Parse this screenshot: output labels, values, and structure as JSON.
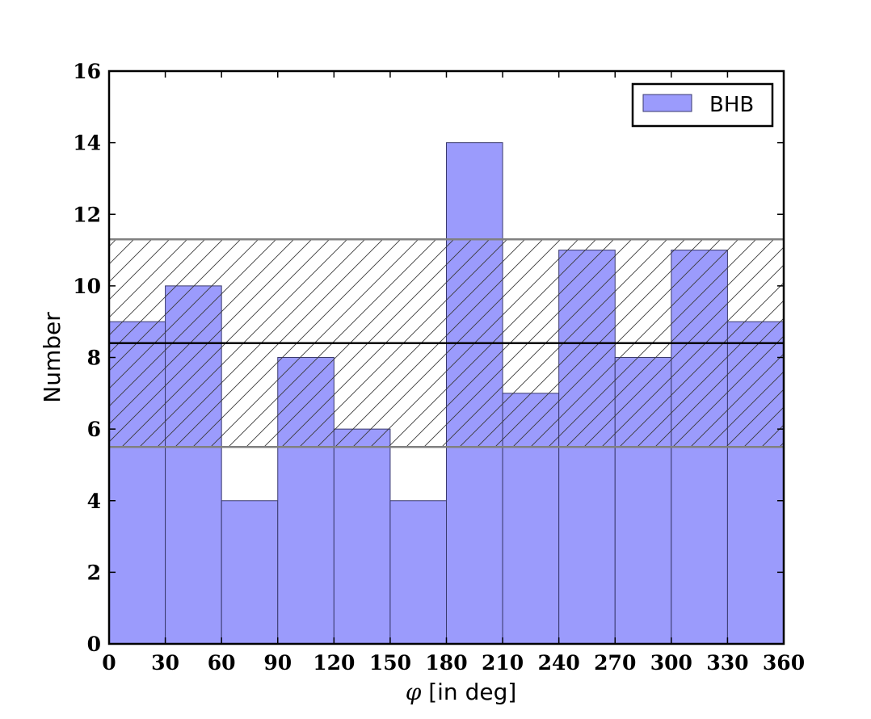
{
  "chart_data": {
    "type": "bar",
    "title": "",
    "xlabel_symbol": "φ",
    "xlabel_text": " [in deg]",
    "ylabel": "Number",
    "bin_edges": [
      0,
      30,
      60,
      90,
      120,
      150,
      180,
      210,
      240,
      270,
      300,
      330,
      360
    ],
    "series": [
      {
        "name": "BHB",
        "values": [
          9,
          10,
          4,
          8,
          6,
          4,
          14,
          7,
          11,
          8,
          11,
          9
        ],
        "color": "#9b9bfc",
        "edge_color": "#3a3a6e"
      }
    ],
    "xlim": [
      0,
      360
    ],
    "ylim": [
      0,
      16
    ],
    "xticks": [
      "0",
      "30",
      "60",
      "90",
      "120",
      "150",
      "180",
      "210",
      "240",
      "270",
      "300",
      "330",
      "360"
    ],
    "yticks": [
      "0",
      "2",
      "4",
      "6",
      "8",
      "10",
      "12",
      "14",
      "16"
    ],
    "mean_line": 8.4,
    "band": {
      "lower": 5.5,
      "upper": 11.3,
      "pattern": "diagonal-hatch",
      "edge_color": "#808080"
    },
    "mean_color": "#000000",
    "legend_position": "top-right",
    "grid": false
  }
}
